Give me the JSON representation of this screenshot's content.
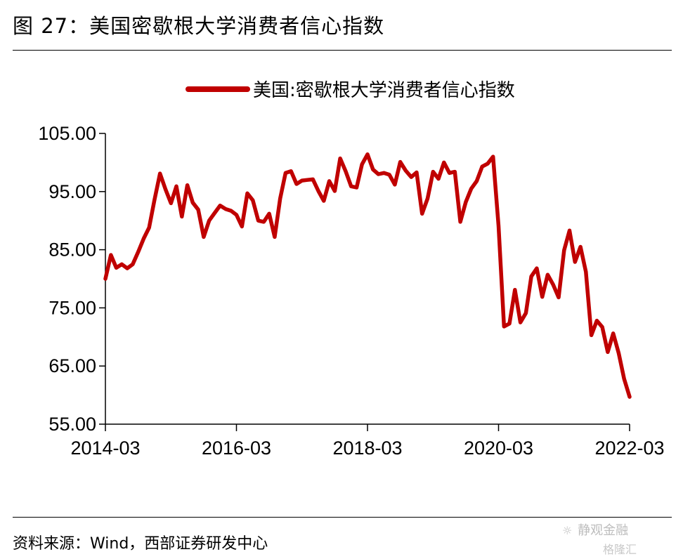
{
  "figure": {
    "title": "图 27：美国密歇根大学消费者信心指数",
    "source": "资料来源：Wind，西部证券研发中心",
    "watermark_primary": "静观金融",
    "watermark_secondary": "格隆汇"
  },
  "chart_data": {
    "type": "line",
    "title": "",
    "xlabel": "",
    "ylabel": "",
    "legend_position": "top-right",
    "grid": false,
    "ylim": [
      55,
      105
    ],
    "yticks": [
      55,
      65,
      75,
      85,
      95,
      105
    ],
    "ytick_labels": [
      "55.00",
      "65.00",
      "75.00",
      "85.00",
      "95.00",
      "105.00"
    ],
    "xlim": [
      "2014-03",
      "2022-03"
    ],
    "xticks": [
      "2014-03",
      "2016-03",
      "2018-03",
      "2020-03",
      "2022-03"
    ],
    "series": [
      {
        "name": "美国:密歇根大学消费者信心指数",
        "color": "#c00000",
        "x": [
          "2014-03",
          "2014-04",
          "2014-05",
          "2014-06",
          "2014-07",
          "2014-08",
          "2014-09",
          "2014-10",
          "2014-11",
          "2014-12",
          "2015-01",
          "2015-02",
          "2015-03",
          "2015-04",
          "2015-05",
          "2015-06",
          "2015-07",
          "2015-08",
          "2015-09",
          "2015-10",
          "2015-11",
          "2015-12",
          "2016-01",
          "2016-02",
          "2016-03",
          "2016-04",
          "2016-05",
          "2016-06",
          "2016-07",
          "2016-08",
          "2016-09",
          "2016-10",
          "2016-11",
          "2016-12",
          "2017-01",
          "2017-02",
          "2017-03",
          "2017-04",
          "2017-05",
          "2017-06",
          "2017-07",
          "2017-08",
          "2017-09",
          "2017-10",
          "2017-11",
          "2017-12",
          "2018-01",
          "2018-02",
          "2018-03",
          "2018-04",
          "2018-05",
          "2018-06",
          "2018-07",
          "2018-08",
          "2018-09",
          "2018-10",
          "2018-11",
          "2018-12",
          "2019-01",
          "2019-02",
          "2019-03",
          "2019-04",
          "2019-05",
          "2019-06",
          "2019-07",
          "2019-08",
          "2019-09",
          "2019-10",
          "2019-11",
          "2019-12",
          "2020-01",
          "2020-02",
          "2020-03",
          "2020-04",
          "2020-05",
          "2020-06",
          "2020-07",
          "2020-08",
          "2020-09",
          "2020-10",
          "2020-11",
          "2020-12",
          "2021-01",
          "2021-02",
          "2021-03",
          "2021-04",
          "2021-05",
          "2021-06",
          "2021-07",
          "2021-08",
          "2021-09",
          "2021-10",
          "2021-11",
          "2021-12",
          "2022-01",
          "2022-02",
          "2022-03"
        ],
        "values": [
          80.0,
          84.1,
          81.9,
          82.5,
          81.8,
          82.5,
          84.6,
          86.9,
          88.8,
          93.6,
          98.1,
          95.4,
          93.0,
          95.9,
          90.7,
          96.1,
          93.1,
          91.9,
          87.2,
          90.0,
          91.3,
          92.6,
          92.0,
          91.7,
          91.0,
          89.0,
          94.7,
          93.5,
          90.0,
          89.8,
          91.2,
          87.2,
          93.8,
          98.2,
          98.5,
          96.3,
          96.9,
          97.0,
          97.1,
          95.1,
          93.4,
          96.8,
          95.1,
          100.7,
          98.5,
          95.9,
          95.7,
          99.7,
          101.4,
          98.8,
          98.0,
          98.2,
          97.9,
          96.2,
          100.1,
          98.6,
          97.5,
          98.3,
          91.2,
          93.8,
          98.4,
          97.2,
          100.0,
          98.2,
          98.4,
          89.8,
          93.2,
          95.5,
          96.8,
          99.3,
          99.8,
          101.0,
          89.1,
          71.8,
          72.3,
          78.1,
          72.5,
          74.1,
          80.4,
          81.8,
          76.9,
          80.7,
          79.0,
          76.8,
          84.9,
          88.3,
          82.9,
          85.5,
          81.2,
          70.3,
          72.8,
          71.7,
          67.4,
          70.6,
          67.2,
          62.8,
          59.7
        ]
      }
    ]
  }
}
